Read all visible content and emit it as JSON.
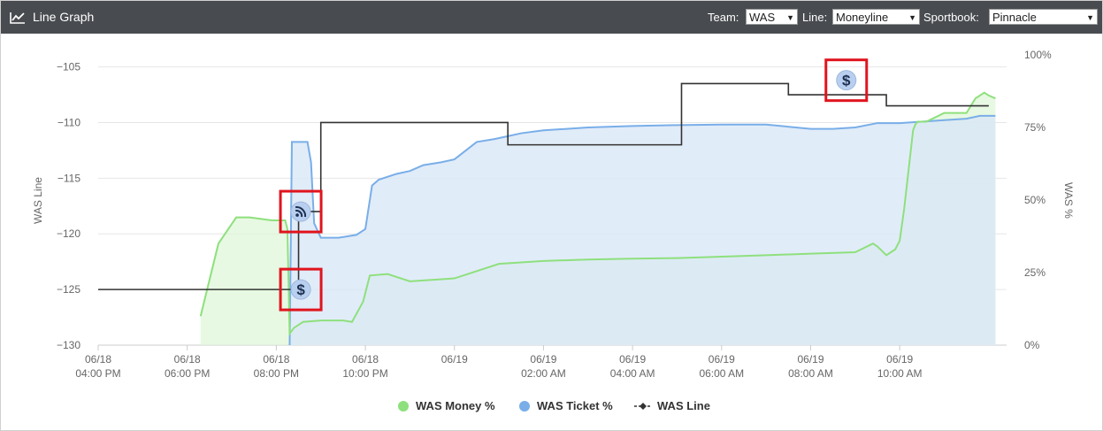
{
  "header": {
    "title": "Line Graph",
    "team_label": "Team:",
    "team_value": "WAS",
    "line_label": "Line:",
    "line_value": "Moneyline",
    "sportbook_label": "Sportbook:",
    "sportbook_value": "Pinnacle"
  },
  "chart_data": {
    "type": "line",
    "ylabel": "WAS Line",
    "y2label": "WAS %",
    "y_ticks": [
      "−105",
      "−110",
      "−115",
      "−120",
      "−125",
      "−130"
    ],
    "y_tick_values": [
      -105,
      -110,
      -115,
      -120,
      -125,
      -130
    ],
    "ylim": [
      -130,
      -104
    ],
    "y2_ticks": [
      "100%",
      "75%",
      "50%",
      "25%",
      "0%"
    ],
    "y2lim": [
      0,
      100
    ],
    "x_ticks": [
      [
        "06/18",
        "04:00 PM"
      ],
      [
        "06/18",
        "06:00 PM"
      ],
      [
        "06/18",
        "08:00 PM"
      ],
      [
        "06/18",
        "10:00 PM"
      ],
      [
        "06/19",
        ""
      ],
      [
        "06/19",
        "02:00 AM"
      ],
      [
        "06/19",
        "04:00 AM"
      ],
      [
        "06/19",
        "06:00 AM"
      ],
      [
        "06/19",
        "08:00 AM"
      ],
      [
        "06/19",
        "10:00 AM"
      ]
    ],
    "x_unit": "hours after 06/18 04:00 PM",
    "series": [
      {
        "name": "WAS Money %",
        "color": "#8ee07d",
        "fill": "#dff7d8",
        "axis": "right",
        "x": [
          2.3,
          2.7,
          3.1,
          3.4,
          3.9,
          4.2,
          4.25,
          4.3,
          4.4,
          4.6,
          5.0,
          5.5,
          5.7,
          5.95,
          6.1,
          6.5,
          7.0,
          8.0,
          9.0,
          10.0,
          11.0,
          12.0,
          13.0,
          14.0,
          15.0,
          16.0,
          17.0,
          17.4,
          17.5,
          17.7,
          17.9,
          18.0,
          18.1,
          18.3,
          18.35,
          18.4,
          18.6,
          19.0,
          19.5,
          19.7,
          19.9,
          20.0,
          20.15
        ],
        "values": [
          10,
          35,
          44,
          44,
          43,
          43,
          40,
          4,
          6,
          8,
          8.5,
          8.5,
          8,
          15,
          24,
          24.5,
          22,
          23,
          28,
          29,
          29.5,
          29.8,
          30,
          30.5,
          31,
          31.5,
          32,
          35,
          34,
          31,
          33,
          36,
          47,
          74,
          76,
          77,
          77,
          80,
          80,
          85,
          87,
          86,
          85
        ]
      },
      {
        "name": "WAS Ticket %",
        "color": "#79aee8",
        "fill": "#dae7f8",
        "axis": "right",
        "x": [
          4.3,
          4.35,
          4.7,
          4.78,
          4.85,
          5.0,
          5.4,
          5.8,
          6.0,
          6.15,
          6.3,
          6.7,
          7.0,
          7.3,
          7.7,
          8.0,
          8.5,
          8.9,
          9.2,
          9.5,
          10.0,
          11.0,
          12.0,
          13.0,
          14.0,
          15.0,
          16.0,
          16.5,
          17.0,
          17.5,
          18.0,
          19.0,
          19.5,
          19.8,
          20.15
        ],
        "values": [
          0,
          70,
          70,
          63,
          42,
          37,
          37,
          38,
          40,
          55,
          57,
          59,
          60,
          62,
          63,
          64,
          70,
          71,
          72,
          73,
          74,
          75,
          75.5,
          75.8,
          76,
          76,
          74.5,
          74.5,
          75,
          76.5,
          76.5,
          77.5,
          78,
          79,
          79
        ]
      },
      {
        "name": "WAS Line",
        "color": "#333333",
        "axis": "left",
        "step": true,
        "x": [
          0.0,
          4.5,
          5.0,
          9.2,
          13.1,
          15.0,
          15.5,
          16.9,
          17.7,
          18.5,
          20.0
        ],
        "values": [
          -125,
          -118,
          -110,
          -112,
          -106.5,
          -106.5,
          -107.5,
          -107.5,
          -108.5,
          -108.5,
          -108.5
        ]
      }
    ],
    "markers": [
      {
        "icon": "dollar-icon",
        "x": 4.55,
        "y": -125
      },
      {
        "icon": "rss-icon",
        "x": 4.55,
        "y": -118
      },
      {
        "icon": "dollar-icon",
        "x": 16.8,
        "y": -106.2
      }
    ],
    "grid": true,
    "legend_position": "bottom-center"
  },
  "legend": {
    "money": "WAS Money %",
    "ticket": "WAS Ticket %",
    "line": "WAS Line"
  },
  "colors": {
    "money": "#8ee07d",
    "ticket": "#79aee8",
    "line": "#333333",
    "highlight": "#e0141e",
    "header_bg": "#484b4f"
  }
}
